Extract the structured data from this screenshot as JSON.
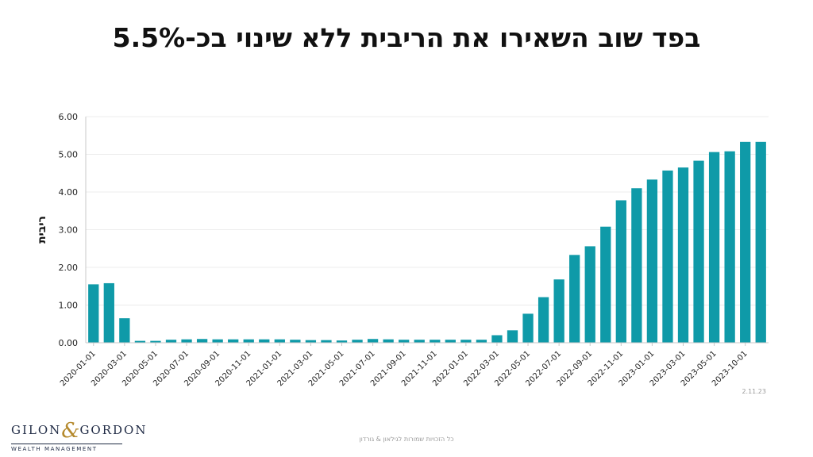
{
  "slide": {
    "title": "בפד שוב השאירו את הריבית ללא שינוי בכ-5.5%",
    "date_stamp": "2.11.23",
    "footer_note": "כל הזכויות שמורות לגילאון & גורדון",
    "logo": {
      "name": "GILON & GORDON",
      "tagline": "WEALTH MANAGEMENT"
    }
  },
  "colors": {
    "bar": "#0f9aa8",
    "axis": "#c8c8c8",
    "grid": "#ececec",
    "text": "#222222"
  },
  "chart_data": {
    "type": "bar",
    "title": "",
    "xlabel": "",
    "ylabel": "ריבית",
    "ylim": [
      0,
      6
    ],
    "yticks": [
      "0.00",
      "1.00",
      "2.00",
      "3.00",
      "4.00",
      "5.00",
      "6.00"
    ],
    "grid": true,
    "categories": [
      "2020-01-01",
      "2020-02-01",
      "2020-03-01",
      "2020-04-01",
      "2020-05-01",
      "2020-06-01",
      "2020-07-01",
      "2020-08-01",
      "2020-09-01",
      "2020-10-01",
      "2020-11-01",
      "2020-12-01",
      "2021-01-01",
      "2021-02-01",
      "2021-03-01",
      "2021-04-01",
      "2021-05-01",
      "2021-06-01",
      "2021-07-01",
      "2021-08-01",
      "2021-09-01",
      "2021-10-01",
      "2021-11-01",
      "2021-12-01",
      "2022-01-01",
      "2022-02-01",
      "2022-03-01",
      "2022-04-01",
      "2022-05-01",
      "2022-06-01",
      "2022-07-01",
      "2022-08-01",
      "2022-09-01",
      "2022-10-01",
      "2022-11-01",
      "2022-12-01",
      "2023-01-01",
      "2023-02-01",
      "2023-03-01",
      "2023-04-01",
      "2023-05-01",
      "2023-06-01",
      "2023-10-01",
      "2023-11-01"
    ],
    "values": [
      1.55,
      1.58,
      0.65,
      0.05,
      0.05,
      0.08,
      0.09,
      0.1,
      0.09,
      0.09,
      0.09,
      0.09,
      0.09,
      0.08,
      0.07,
      0.07,
      0.06,
      0.08,
      0.1,
      0.09,
      0.08,
      0.08,
      0.08,
      0.08,
      0.08,
      0.08,
      0.2,
      0.33,
      0.77,
      1.21,
      1.68,
      2.33,
      2.56,
      3.08,
      3.78,
      4.1,
      4.33,
      4.57,
      4.65,
      4.83,
      5.06,
      5.08,
      5.33,
      5.33
    ],
    "x_tick_labels": [
      "2020-01-01",
      "2020-03-01",
      "2020-05-01",
      "2020-07-01",
      "2020-09-01",
      "2020-11-01",
      "2021-01-01",
      "2021-03-01",
      "2021-05-01",
      "2021-07-01",
      "2021-09-01",
      "2021-11-01",
      "2022-01-01",
      "2022-03-01",
      "2022-05-01",
      "2022-07-01",
      "2022-09-01",
      "2022-11-01",
      "2023-01-01",
      "2023-03-01",
      "2023-05-01",
      "2023-10-01"
    ]
  }
}
